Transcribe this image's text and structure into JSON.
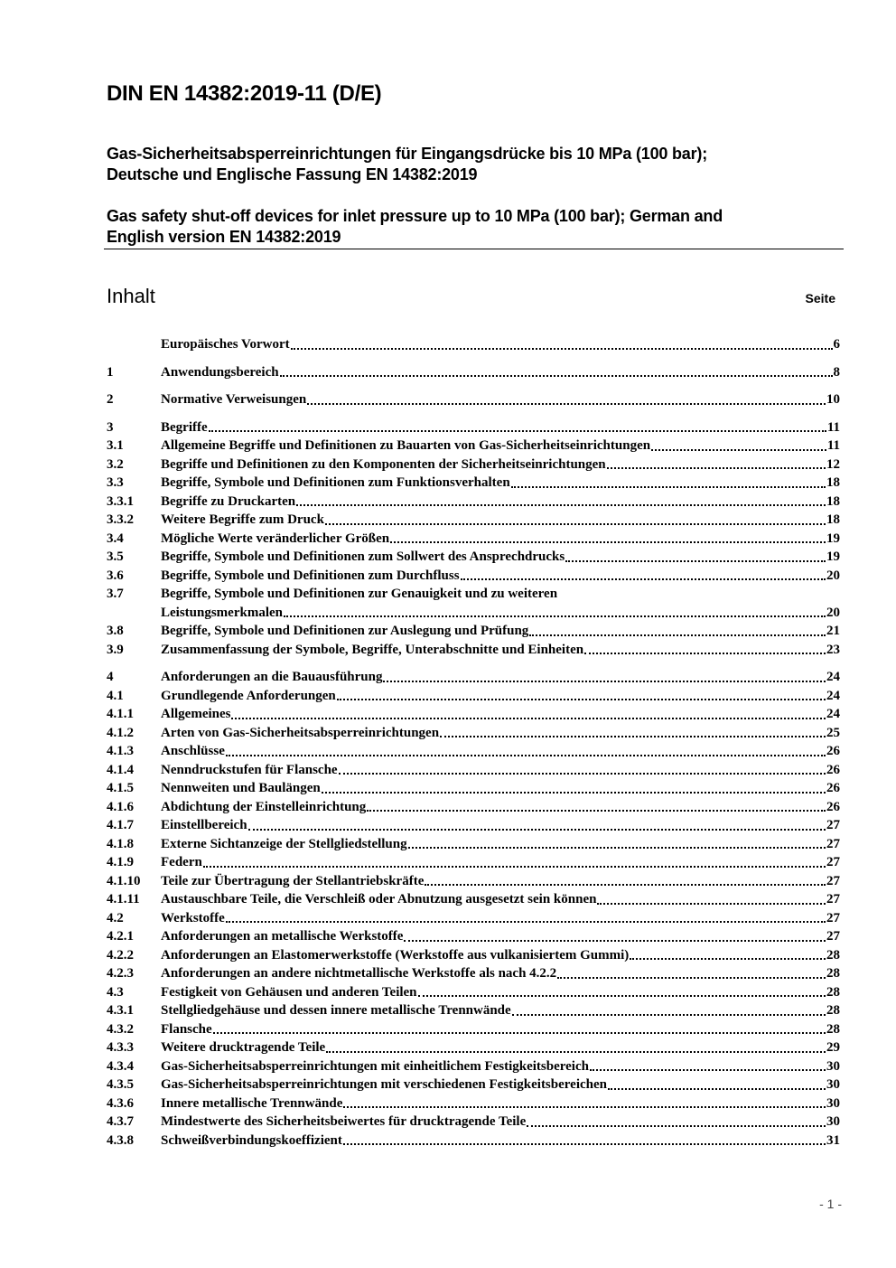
{
  "header": {
    "title": "DIN EN 14382:2019-11 (D/E)",
    "subtitle_de": [
      "Gas-Sicherheitsabsperreinrichtungen für Eingangsdrücke bis 10 MPa (100 bar);",
      "Deutsche und Englische Fassung EN 14382:2019"
    ],
    "subtitle_en": [
      "Gas safety shut-off devices for inlet pressure up to 10 MPa (100 bar); German and",
      "English version EN 14382:2019"
    ]
  },
  "toc": {
    "heading": "Inhalt",
    "page_heading": "Seite",
    "entries": [
      {
        "num": "",
        "text": "Europäisches Vorwort",
        "page": "6"
      },
      {
        "num": "1",
        "text": "Anwendungsbereich",
        "page": "8",
        "gap": true
      },
      {
        "num": "2",
        "text": "Normative Verweisungen",
        "page": "10",
        "gap": true
      },
      {
        "num": "3",
        "text": "Begriffe",
        "page": "11",
        "gap": true
      },
      {
        "num": "3.1",
        "text": "Allgemeine Begriffe und Definitionen zu Bauarten von Gas-Sicherheitseinrichtungen",
        "page": "11"
      },
      {
        "num": "3.2",
        "text": "Begriffe und Definitionen zu den Komponenten der Sicherheitseinrichtungen",
        "page": "12"
      },
      {
        "num": "3.3",
        "text": "Begriffe, Symbole und Definitionen zum Funktionsverhalten",
        "page": "18"
      },
      {
        "num": "3.3.1",
        "text": "Begriffe zu Druckarten",
        "page": "18"
      },
      {
        "num": "3.3.2",
        "text": "Weitere Begriffe zum Druck",
        "page": "18"
      },
      {
        "num": "3.4",
        "text": "Mögliche Werte veränderlicher Größen",
        "page": "19"
      },
      {
        "num": "3.5",
        "text": "Begriffe, Symbole und Definitionen zum Sollwert des Ansprechdrucks",
        "page": "19"
      },
      {
        "num": "3.6",
        "text": "Begriffe, Symbole und Definitionen zum Durchfluss",
        "page": "20"
      },
      {
        "num": "3.7",
        "text": "Begriffe, Symbole und Definitionen zur Genauigkeit und zu weiteren",
        "page": "",
        "nodots": true
      },
      {
        "num": "",
        "text": "Leistungsmerkmalen",
        "page": "20",
        "cont": true
      },
      {
        "num": "3.8",
        "text": "Begriffe, Symbole und Definitionen zur Auslegung und Prüfung",
        "page": "21"
      },
      {
        "num": "3.9",
        "text": "Zusammenfassung der Symbole, Begriffe, Unterabschnitte und Einheiten",
        "page": "23"
      },
      {
        "num": "4",
        "text": "Anforderungen an die Bauausführung",
        "page": "24",
        "gap": true
      },
      {
        "num": "4.1",
        "text": "Grundlegende Anforderungen",
        "page": "24"
      },
      {
        "num": "4.1.1",
        "text": "Allgemeines",
        "page": "24"
      },
      {
        "num": "4.1.2",
        "text": "Arten von Gas-Sicherheitsabsperreinrichtungen",
        "page": "25"
      },
      {
        "num": "4.1.3",
        "text": "Anschlüsse",
        "page": "26"
      },
      {
        "num": "4.1.4",
        "text": "Nenndruckstufen für Flansche",
        "page": "26"
      },
      {
        "num": "4.1.5",
        "text": "Nennweiten und Baulängen",
        "page": "26"
      },
      {
        "num": "4.1.6",
        "text": "Abdichtung der Einstelleinrichtung",
        "page": "26"
      },
      {
        "num": "4.1.7",
        "text": "Einstellbereich",
        "page": "27"
      },
      {
        "num": "4.1.8",
        "text": "Externe Sichtanzeige der Stellgliedstellung",
        "page": "27"
      },
      {
        "num": "4.1.9",
        "text": "Federn",
        "page": "27"
      },
      {
        "num": "4.1.10",
        "text": "Teile zur Übertragung der Stellantriebskräfte",
        "page": "27"
      },
      {
        "num": "4.1.11",
        "text": "Austauschbare Teile, die Verschleiß oder Abnutzung ausgesetzt sein können",
        "page": "27"
      },
      {
        "num": "4.2",
        "text": "Werkstoffe",
        "page": "27"
      },
      {
        "num": "4.2.1",
        "text": "Anforderungen an metallische Werkstoffe",
        "page": "27"
      },
      {
        "num": "4.2.2",
        "text": "Anforderungen an Elastomerwerkstoffe (Werkstoffe aus vulkanisiertem Gummi)",
        "page": "28"
      },
      {
        "num": "4.2.3",
        "text": "Anforderungen an andere nichtmetallische Werkstoffe als nach 4.2.2",
        "page": "28"
      },
      {
        "num": "4.3",
        "text": "Festigkeit von Gehäusen und anderen Teilen",
        "page": "28"
      },
      {
        "num": "4.3.1",
        "text": "Stellgliedgehäuse und dessen innere metallische Trennwände",
        "page": "28"
      },
      {
        "num": "4.3.2",
        "text": "Flansche",
        "page": "28"
      },
      {
        "num": "4.3.3",
        "text": "Weitere drucktragende Teile",
        "page": "29"
      },
      {
        "num": "4.3.4",
        "text": "Gas-Sicherheitsabsperreinrichtungen mit einheitlichem Festigkeitsbereich",
        "page": "30"
      },
      {
        "num": "4.3.5",
        "text": "Gas-Sicherheitsabsperreinrichtungen mit verschiedenen Festigkeitsbereichen",
        "page": "30"
      },
      {
        "num": "4.3.6",
        "text": "Innere metallische Trennwände",
        "page": "30"
      },
      {
        "num": "4.3.7",
        "text": "Mindestwerte des Sicherheitsbeiwertes für drucktragende Teile",
        "page": "30"
      },
      {
        "num": "4.3.8",
        "text": "Schweißverbindungskoeffizient",
        "page": "31"
      }
    ]
  },
  "footer": {
    "page_number": "- 1 -"
  }
}
